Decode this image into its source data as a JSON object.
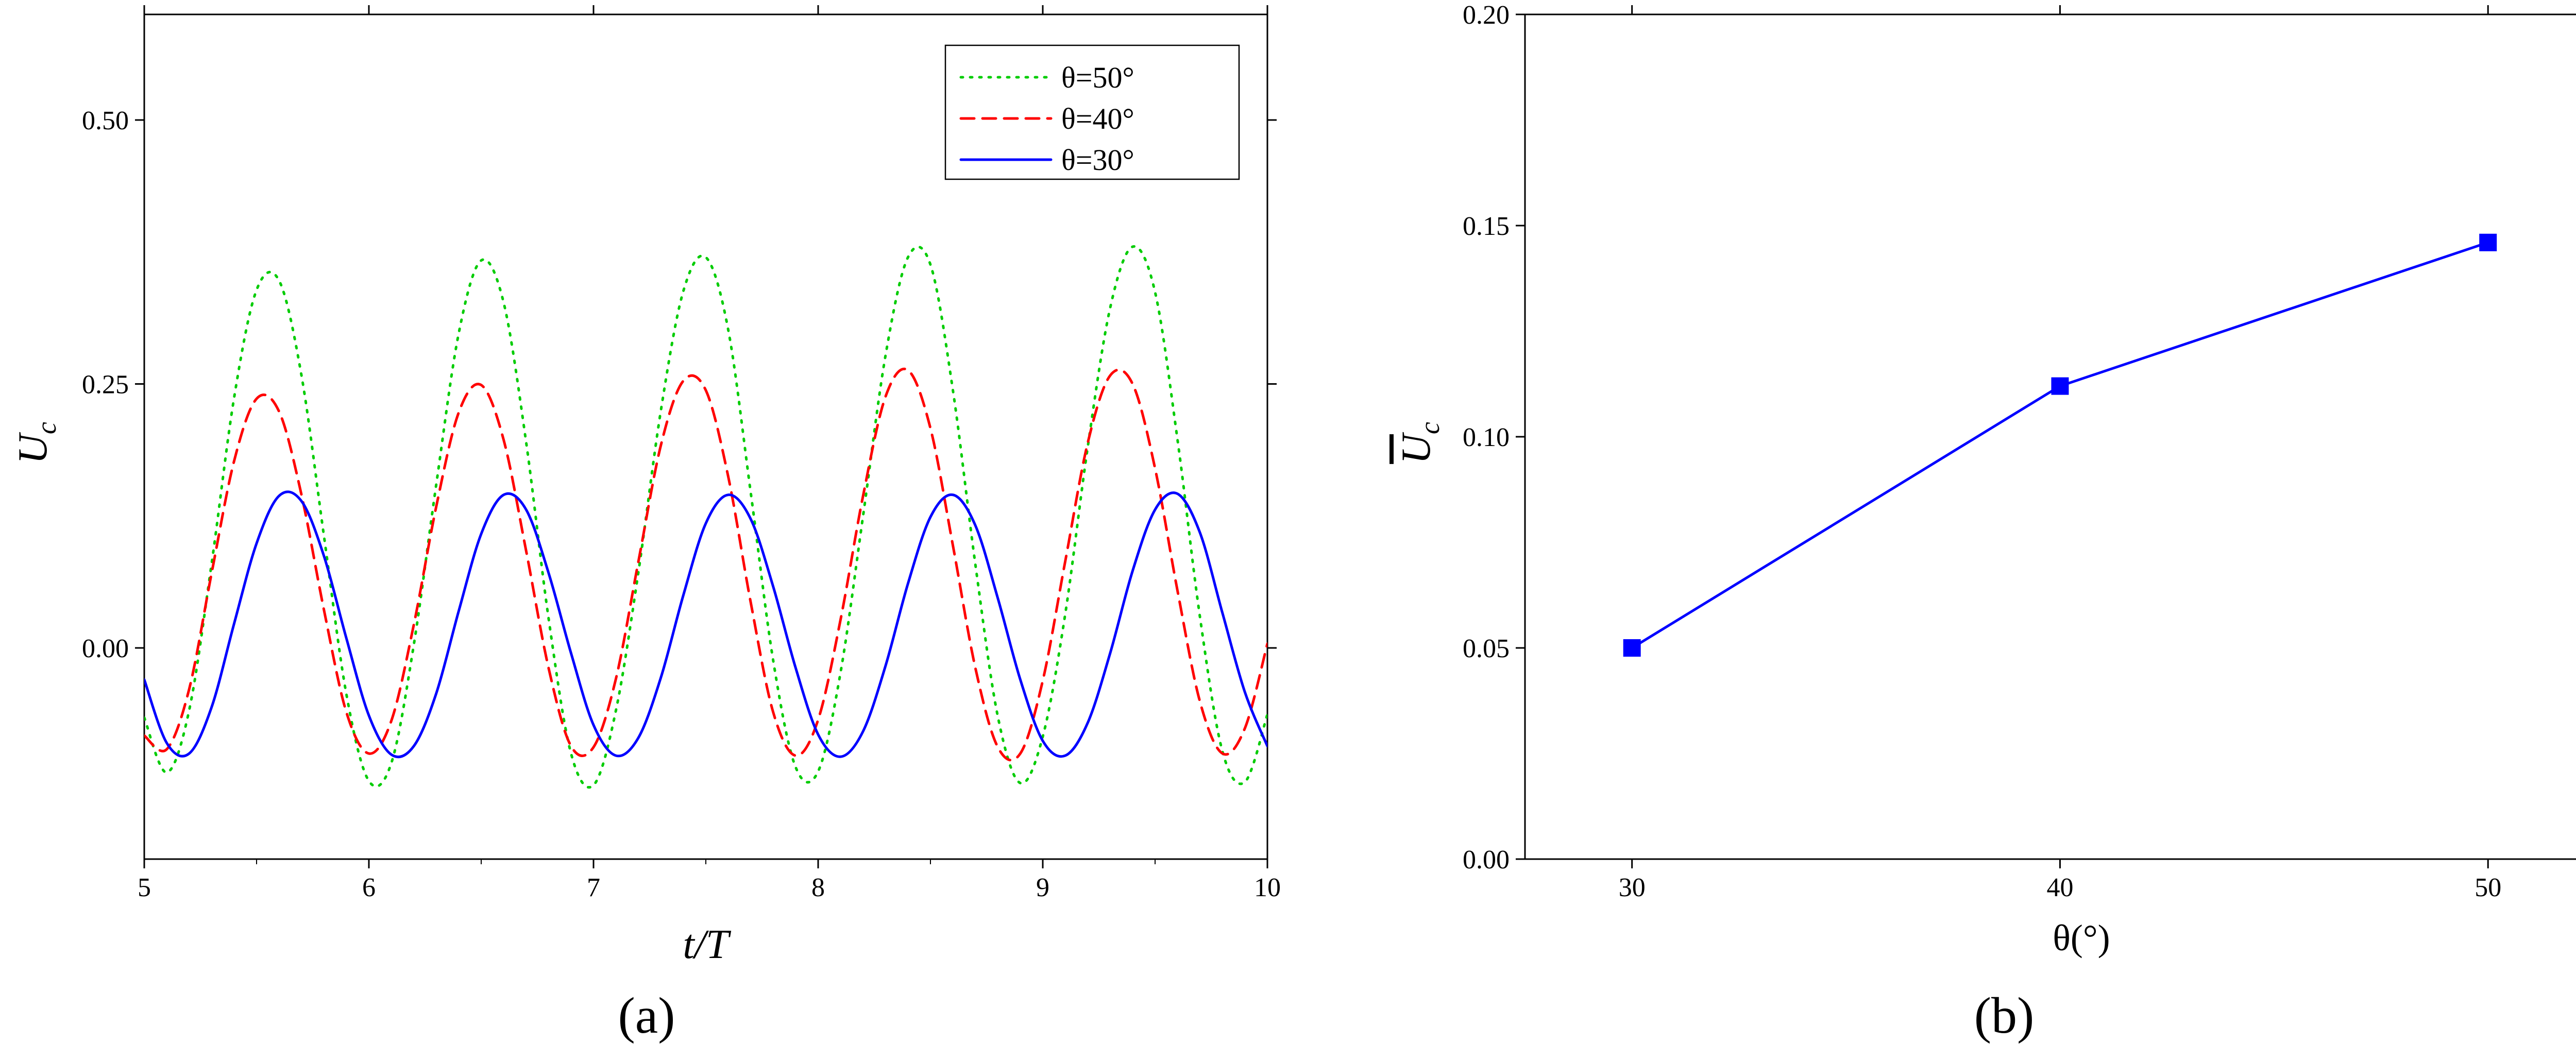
{
  "figure": {
    "panel_a_label": "(a)",
    "panel_b_label": "(b)"
  },
  "chart_data": [
    {
      "type": "line",
      "panel": "(a)",
      "xlabel": "t/T",
      "ylabel": "U_c",
      "xlim": [
        5,
        10
      ],
      "ylim": [
        -0.2,
        0.6
      ],
      "xticks": [
        "5",
        "6",
        "7",
        "8",
        "9",
        "10"
      ],
      "yticks": [
        "0.00",
        "0.25",
        "0.50"
      ],
      "ytick_values": [
        0.0,
        0.25,
        0.5
      ],
      "legend_position": "top-right",
      "series": [
        {
          "name": "θ=50°",
          "color": "#00cc00",
          "style": "dotted",
          "x": [
            5.0,
            5.1,
            5.2,
            5.3,
            5.4,
            5.5,
            5.6,
            5.7,
            5.8,
            5.9,
            6.0,
            6.1,
            6.2,
            6.3,
            6.4,
            6.5,
            6.6,
            6.7,
            6.8,
            6.9,
            7.0,
            7.1,
            7.2,
            7.3,
            7.4,
            7.5,
            7.6,
            7.7,
            7.8,
            7.9,
            8.0,
            8.1,
            8.2,
            8.3,
            8.4,
            8.5,
            8.6,
            8.7,
            8.8,
            8.9,
            9.0,
            9.1,
            9.2,
            9.3,
            9.4,
            9.5,
            9.6,
            9.7,
            9.8,
            9.9,
            10.0
          ],
          "y": [
            -0.066,
            -0.118,
            -0.059,
            0.08,
            0.237,
            0.339,
            0.348,
            0.258,
            0.106,
            -0.044,
            -0.126,
            -0.109,
            0.003,
            0.155,
            0.298,
            0.367,
            0.327,
            0.195,
            0.028,
            -0.1,
            -0.13,
            -0.059,
            0.072,
            0.225,
            0.338,
            0.37,
            0.301,
            0.147,
            -0.012,
            -0.113,
            -0.117,
            -0.023,
            0.125,
            0.277,
            0.37,
            0.363,
            0.244,
            0.079,
            -0.065,
            -0.128,
            -0.084,
            0.032,
            0.19,
            0.322,
            0.38,
            0.337,
            0.197,
            0.029,
            -0.098,
            -0.127,
            -0.063
          ]
        },
        {
          "name": "θ=40°",
          "color": "#ff0000",
          "style": "dashed",
          "x": [
            5.0,
            5.1,
            5.2,
            5.3,
            5.4,
            5.5,
            5.6,
            5.7,
            5.8,
            5.9,
            6.0,
            6.1,
            6.2,
            6.3,
            6.4,
            6.5,
            6.6,
            6.7,
            6.8,
            6.9,
            7.0,
            7.1,
            7.2,
            7.3,
            7.4,
            7.5,
            7.6,
            7.7,
            7.8,
            7.9,
            8.0,
            8.1,
            8.2,
            8.3,
            8.4,
            8.5,
            8.6,
            8.7,
            8.8,
            8.9,
            9.0,
            9.1,
            9.2,
            9.3,
            9.4,
            9.5,
            9.6,
            9.7,
            9.8,
            9.9,
            10.0
          ],
          "y": [
            -0.083,
            -0.096,
            -0.039,
            0.071,
            0.177,
            0.236,
            0.224,
            0.145,
            0.036,
            -0.061,
            -0.1,
            -0.069,
            0.022,
            0.134,
            0.223,
            0.249,
            0.197,
            0.092,
            -0.019,
            -0.093,
            -0.094,
            -0.029,
            0.082,
            0.192,
            0.253,
            0.244,
            0.162,
            0.043,
            -0.061,
            -0.102,
            -0.068,
            0.027,
            0.144,
            0.238,
            0.263,
            0.208,
            0.097,
            -0.019,
            -0.094,
            -0.1,
            -0.031,
            0.082,
            0.194,
            0.258,
            0.25,
            0.17,
            0.054,
            -0.051,
            -0.1,
            -0.076,
            0.004
          ]
        },
        {
          "name": "θ=30°",
          "color": "#0000ff",
          "style": "solid",
          "x": [
            5.0,
            5.1,
            5.2,
            5.3,
            5.4,
            5.5,
            5.6,
            5.7,
            5.8,
            5.9,
            6.0,
            6.1,
            6.2,
            6.3,
            6.4,
            6.5,
            6.6,
            6.7,
            6.8,
            6.9,
            7.0,
            7.1,
            7.2,
            7.3,
            7.4,
            7.5,
            7.6,
            7.7,
            7.8,
            7.9,
            8.0,
            8.1,
            8.2,
            8.3,
            8.4,
            8.5,
            8.6,
            8.7,
            8.8,
            8.9,
            9.0,
            9.1,
            9.2,
            9.3,
            9.4,
            9.5,
            9.6,
            9.7,
            9.8,
            9.9,
            10.0
          ],
          "y": [
            -0.03,
            -0.09,
            -0.1,
            -0.056,
            0.023,
            0.099,
            0.144,
            0.139,
            0.087,
            0.009,
            -0.064,
            -0.101,
            -0.093,
            -0.043,
            0.035,
            0.108,
            0.145,
            0.131,
            0.071,
            -0.005,
            -0.073,
            -0.102,
            -0.085,
            -0.028,
            0.05,
            0.118,
            0.145,
            0.122,
            0.058,
            -0.019,
            -0.082,
            -0.103,
            -0.079,
            -0.017,
            0.061,
            0.124,
            0.145,
            0.116,
            0.047,
            -0.03,
            -0.088,
            -0.102,
            -0.071,
            -0.005,
            0.073,
            0.131,
            0.146,
            0.109,
            0.033,
            -0.042,
            -0.093
          ]
        }
      ]
    },
    {
      "type": "line",
      "panel": "(b)",
      "xlabel": "θ(°)",
      "ylabel": "Ū_c",
      "xlim": [
        27.5,
        53.5
      ],
      "ylim": [
        0.0,
        0.2
      ],
      "xticks": [
        "30",
        "40",
        "50"
      ],
      "xtick_values": [
        30,
        40,
        50
      ],
      "yticks": [
        "0.00",
        "0.05",
        "0.10",
        "0.15",
        "0.20"
      ],
      "ytick_values": [
        0.0,
        0.05,
        0.1,
        0.15,
        0.2
      ],
      "series": [
        {
          "color": "#0000ff",
          "marker": "square",
          "x": [
            30,
            40,
            50
          ],
          "y": [
            0.05,
            0.112,
            0.146
          ]
        }
      ]
    }
  ]
}
